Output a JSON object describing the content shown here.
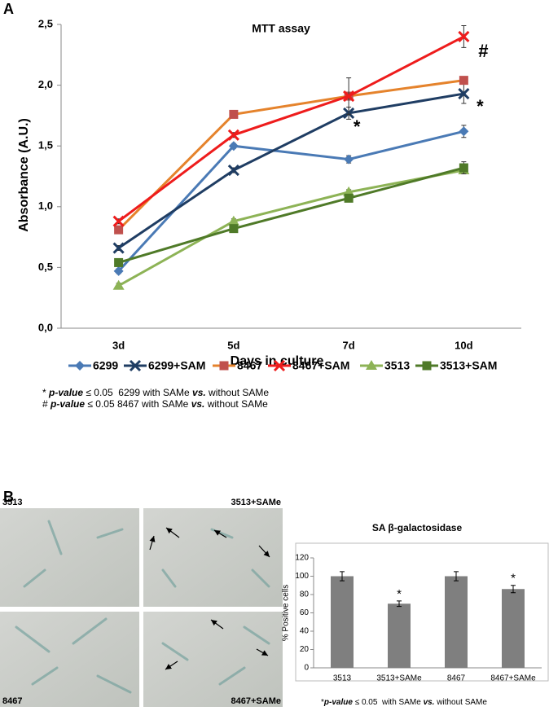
{
  "panel_labels": [
    "A",
    "B"
  ],
  "chart_data": [
    {
      "type": "line",
      "title": "MTT assay",
      "x_label": "Days in culture",
      "y_label": "Absorbance (A.U.)",
      "categories": [
        "3d",
        "5d",
        "7d",
        "10d"
      ],
      "ylim": [
        0,
        2.5
      ],
      "yticks": [
        {
          "value": 0,
          "label": "0,0"
        },
        {
          "value": 0.5,
          "label": "0,5"
        },
        {
          "value": 1,
          "label": "1,0"
        },
        {
          "value": 1.5,
          "label": "1,5"
        },
        {
          "value": 2,
          "label": "2,0"
        },
        {
          "value": 2.5,
          "label": "2,5"
        }
      ],
      "series": [
        {
          "name": "6299",
          "color": "#4a7ab5",
          "marker": "diamond",
          "values": [
            0.47,
            1.5,
            1.39,
            1.62
          ],
          "errors": [
            0.02,
            0.02,
            0.03,
            0.05
          ]
        },
        {
          "name": "6299+SAM",
          "color": "#1f3d63",
          "marker": "x",
          "values": [
            0.66,
            1.3,
            1.77,
            1.93
          ],
          "errors": [
            0.02,
            0.02,
            0.05,
            0.08
          ]
        },
        {
          "name": "8467",
          "color": "#e5832c",
          "marker_color": "#c0504d",
          "marker": "square",
          "values": [
            0.81,
            1.76,
            1.91,
            2.04
          ],
          "errors": [
            0.02,
            0.02,
            0.03,
            0.02
          ]
        },
        {
          "name": "8467+SAM",
          "color": "#ee1c1c",
          "marker": "x",
          "values": [
            0.88,
            1.59,
            1.91,
            2.4
          ],
          "errors": [
            0.02,
            0.02,
            0.15,
            0.09
          ]
        },
        {
          "name": "3513",
          "color": "#8db356",
          "marker": "triangle",
          "values": [
            0.35,
            0.88,
            1.12,
            1.3
          ],
          "errors": [
            0.02,
            0.02,
            0.02,
            0.03
          ]
        },
        {
          "name": "3513+SAM",
          "color": "#4f7a28",
          "marker": "square",
          "values": [
            0.54,
            0.82,
            1.07,
            1.32
          ],
          "errors": [
            0.02,
            0.02,
            0.02,
            0.05
          ]
        }
      ],
      "annotations": [
        "*",
        "#",
        "*"
      ],
      "notes": [
        [
          "* ",
          "p-value",
          " ≤ 0.05  6299 with SAMe ",
          "vs.",
          " without SAMe"
        ],
        [
          "# ",
          "p-value",
          " ≤ 0.05 8467 with SAMe ",
          "vs.",
          " without SAMe"
        ]
      ]
    },
    {
      "type": "bar",
      "title": "SA β-galactosidase",
      "y_label": "% Positive cells",
      "categories": [
        "3513",
        "3513+SAMe",
        "8467",
        "8467+SAMe"
      ],
      "values": [
        100,
        70,
        100,
        86
      ],
      "errors": [
        5,
        3,
        5,
        4
      ],
      "color": "#7f7f7f",
      "ylim": [
        0,
        120
      ],
      "yticks": [
        0,
        20,
        40,
        60,
        80,
        100,
        120
      ],
      "annotations": [
        "*",
        "*"
      ],
      "notes": [
        [
          "*",
          "p-value",
          " ≤ 0.05  with SAMe ",
          "vs.",
          " without SAMe"
        ]
      ]
    }
  ],
  "images": {
    "labels": [
      "3513",
      "3513+SAMe",
      "8467",
      "8467+SAMe"
    ]
  }
}
